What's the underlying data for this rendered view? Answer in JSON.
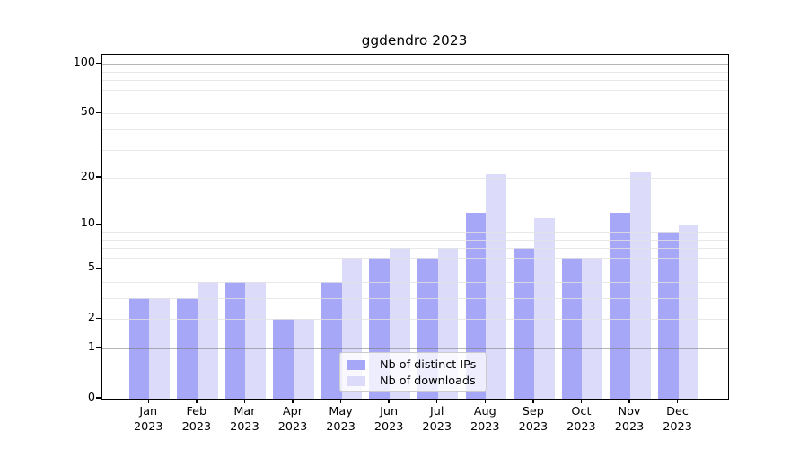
{
  "chart_data": {
    "type": "bar",
    "title": "ggdendro 2023",
    "categories": [
      "Jan",
      "Feb",
      "Mar",
      "Apr",
      "May",
      "Jun",
      "Jul",
      "Aug",
      "Sep",
      "Oct",
      "Nov",
      "Dec"
    ],
    "category_year": "2023",
    "series": [
      {
        "name": "Nb of distinct IPs",
        "color": "#a7a7f8",
        "values": [
          3,
          3,
          4,
          2,
          4,
          6,
          6,
          12,
          7,
          6,
          12,
          9
        ]
      },
      {
        "name": "Nb of downloads",
        "color": "#dcdcfa",
        "values": [
          3,
          4,
          4,
          2,
          6,
          7,
          7,
          21,
          11,
          6,
          22,
          10
        ]
      }
    ],
    "y_tick_labels": [
      "0",
      "1",
      "2",
      "5",
      "10",
      "20",
      "50",
      "100"
    ],
    "y_tick_values": [
      0,
      1,
      2,
      5,
      10,
      20,
      50,
      100
    ],
    "scale": "log1p",
    "ylim": [
      0,
      114
    ],
    "grid": "horizontal, log minors (2-9, 20-90) light gray, majors (1,10,100) darker gray, drawn over bars",
    "legend_position": "bottom-center",
    "xlabel": "",
    "ylabel": ""
  },
  "colors": {
    "background": "#ffffff",
    "spine": "#000000",
    "bar_dark": "#a7a7f8",
    "bar_light": "#dcdcfa",
    "grid_minor": "#ececec",
    "grid_major": "#b5b5b5"
  }
}
